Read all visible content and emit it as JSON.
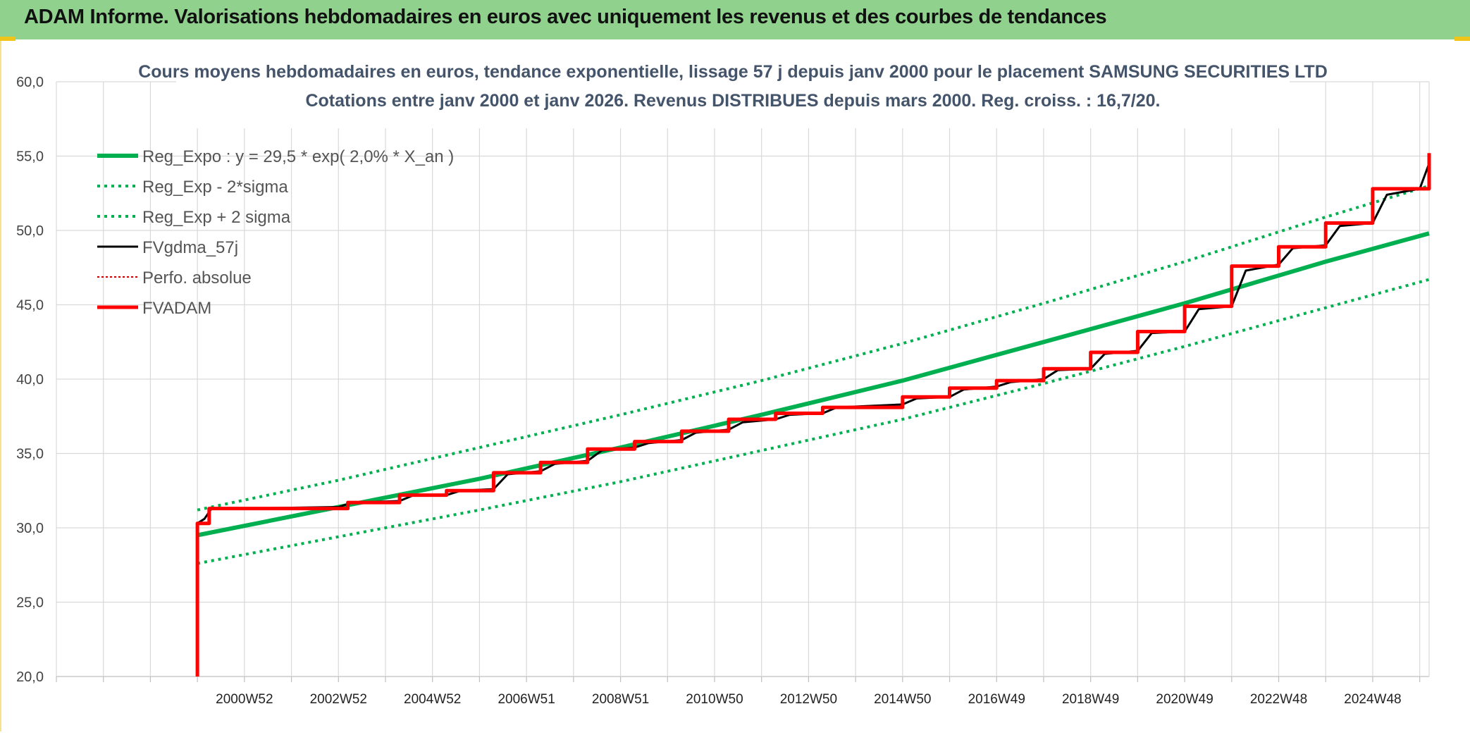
{
  "banner": {
    "title": "ADAM Informe. Valorisations hebdomadaires en euros avec uniquement les revenus et des courbes de tendances"
  },
  "colors": {
    "banner_bg": "#8fd18d",
    "green": "#00b050",
    "red": "#ff0000",
    "black": "#000000",
    "grid": "#d9d9d9",
    "accent_yellow": "#f0c419"
  },
  "chart_data": {
    "type": "line",
    "title_lines": [
      "Cours moyens hebdomadaires en euros, tendance exponentielle, lissage 57 j depuis janv 2000 pour le placement SAMSUNG SECURITIES LTD",
      "Cotations entre janv 2000 et janv 2026. Revenus DISTRIBUES depuis mars 2000. Reg. croiss. : 16,7/20."
    ],
    "ylim": [
      20,
      60
    ],
    "yticks": [
      "20,0",
      "25,0",
      "30,0",
      "35,0",
      "40,0",
      "45,0",
      "50,0",
      "55,0",
      "60,0"
    ],
    "ytick_values": [
      20,
      25,
      30,
      35,
      40,
      45,
      50,
      55,
      60
    ],
    "xlim": [
      1997,
      2026.2
    ],
    "xticks": [
      "2000W52",
      "2002W52",
      "2004W52",
      "2006W51",
      "2008W51",
      "2010W50",
      "2012W50",
      "2014W50",
      "2016W49",
      "2018W49",
      "2020W49",
      "2022W48",
      "2024W48"
    ],
    "xtick_values": [
      2001,
      2003,
      2005,
      2007,
      2009,
      2011,
      2013,
      2015,
      2017,
      2019,
      2021,
      2023,
      2025
    ],
    "grid": true,
    "legend_position": "top-left",
    "series": [
      {
        "name": "Reg_Expo : y = 29,5 * exp( 2,0% *  X_an )",
        "style": "solid-thick",
        "color": "#00b050",
        "x": [
          2000.0,
          2003.0,
          2006.0,
          2009.0,
          2012.0,
          2015.0,
          2018.0,
          2021.0,
          2024.0,
          2026.2
        ],
        "values": [
          29.5,
          31.4,
          33.3,
          35.4,
          37.6,
          39.9,
          42.5,
          45.1,
          47.9,
          49.8
        ]
      },
      {
        "name": "Reg_Exp - 2*sigma",
        "style": "dotted",
        "color": "#00b050",
        "x": [
          2000.0,
          2003.0,
          2006.0,
          2009.0,
          2012.0,
          2015.0,
          2018.0,
          2021.0,
          2024.0,
          2026.2
        ],
        "values": [
          27.6,
          29.4,
          31.2,
          33.1,
          35.2,
          37.3,
          39.7,
          42.2,
          44.8,
          46.7
        ]
      },
      {
        "name": "Reg_Exp + 2 sigma",
        "style": "dotted",
        "color": "#00b050",
        "x": [
          2000.0,
          2003.0,
          2006.0,
          2009.0,
          2012.0,
          2015.0,
          2018.0,
          2021.0,
          2024.0,
          2026.2
        ],
        "values": [
          31.2,
          33.2,
          35.4,
          37.6,
          39.9,
          42.4,
          45.1,
          47.9,
          50.9,
          53.0
        ]
      },
      {
        "name": "FVgdma_57j",
        "style": "solid-thin",
        "color": "#000000",
        "x": [
          2000.0,
          2000.15,
          2000.3,
          2001.0,
          2003.0,
          2003.3,
          2004.3,
          2004.6,
          2005.3,
          2005.6,
          2006.3,
          2006.6,
          2007.3,
          2007.6,
          2008.3,
          2008.6,
          2009.3,
          2009.6,
          2010.3,
          2010.6,
          2011.3,
          2011.6,
          2012.3,
          2012.6,
          2013.3,
          2013.6,
          2015.0,
          2015.3,
          2016.0,
          2016.3,
          2017.0,
          2017.3,
          2018.0,
          2018.3,
          2019.0,
          2019.3,
          2020.0,
          2020.3,
          2021.0,
          2021.3,
          2022.0,
          2022.3,
          2023.0,
          2023.3,
          2024.0,
          2024.3,
          2025.0,
          2025.3,
          2026.0,
          2026.2
        ],
        "values": [
          30.3,
          30.6,
          31.3,
          31.3,
          31.4,
          31.7,
          31.8,
          32.2,
          32.2,
          32.5,
          32.6,
          33.6,
          33.8,
          34.3,
          34.5,
          35.2,
          35.4,
          35.7,
          35.9,
          36.4,
          36.6,
          37.1,
          37.3,
          37.6,
          37.7,
          38.1,
          38.3,
          38.7,
          38.8,
          39.3,
          39.5,
          39.8,
          40.0,
          40.6,
          40.7,
          41.7,
          41.9,
          43.1,
          43.2,
          44.7,
          44.9,
          47.3,
          47.7,
          48.8,
          49.0,
          50.3,
          50.5,
          52.4,
          52.8,
          54.5
        ]
      },
      {
        "name": "Perfo. absolue",
        "style": "dotted-thin",
        "color": "#c00000",
        "x": [],
        "values": []
      },
      {
        "name": "FVADAM",
        "style": "step-thick",
        "color": "#ff0000",
        "x": [
          2000.0,
          2000.0,
          2000.25,
          2000.25,
          2003.2,
          2003.2,
          2004.3,
          2004.3,
          2005.3,
          2005.3,
          2006.3,
          2006.3,
          2007.3,
          2007.3,
          2008.3,
          2008.3,
          2009.3,
          2009.3,
          2010.3,
          2010.3,
          2011.3,
          2011.3,
          2012.3,
          2012.3,
          2013.3,
          2013.3,
          2015.0,
          2015.0,
          2016.0,
          2016.0,
          2017.0,
          2017.0,
          2018.0,
          2018.0,
          2019.0,
          2019.0,
          2020.0,
          2020.0,
          2021.0,
          2021.0,
          2022.0,
          2022.0,
          2023.0,
          2023.0,
          2024.0,
          2024.0,
          2025.0,
          2025.0,
          2026.2,
          2026.2
        ],
        "values": [
          20.0,
          30.3,
          30.3,
          31.3,
          31.3,
          31.7,
          31.7,
          32.2,
          32.2,
          32.5,
          32.5,
          33.7,
          33.7,
          34.4,
          34.4,
          35.3,
          35.3,
          35.8,
          35.8,
          36.5,
          36.5,
          37.3,
          37.3,
          37.7,
          37.7,
          38.1,
          38.1,
          38.8,
          38.8,
          39.4,
          39.4,
          39.9,
          39.9,
          40.7,
          40.7,
          41.8,
          41.8,
          43.2,
          43.2,
          44.9,
          44.9,
          47.6,
          47.6,
          48.9,
          48.9,
          50.5,
          50.5,
          52.8,
          52.8,
          55.2
        ]
      }
    ]
  }
}
